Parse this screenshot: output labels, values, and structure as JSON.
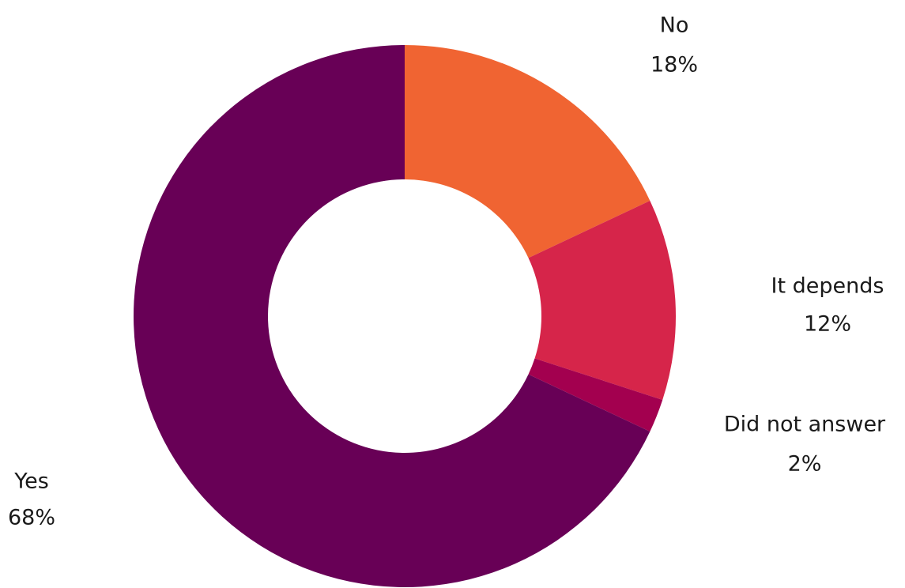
{
  "chart_data": {
    "type": "pie",
    "donut": true,
    "title": "",
    "slices": [
      {
        "label": "No",
        "value": 18,
        "value_label": "18%",
        "color": "#F06432"
      },
      {
        "label": "It depends",
        "value": 12,
        "value_label": "12%",
        "color": "#D6254A"
      },
      {
        "label": "Did not answer",
        "value": 2,
        "value_label": "2%",
        "color": "#A3004F"
      },
      {
        "label": "Yes",
        "value": 68,
        "value_label": "68%",
        "color": "#680056"
      }
    ],
    "start_angle": "12 o'clock",
    "direction": "clockwise"
  }
}
